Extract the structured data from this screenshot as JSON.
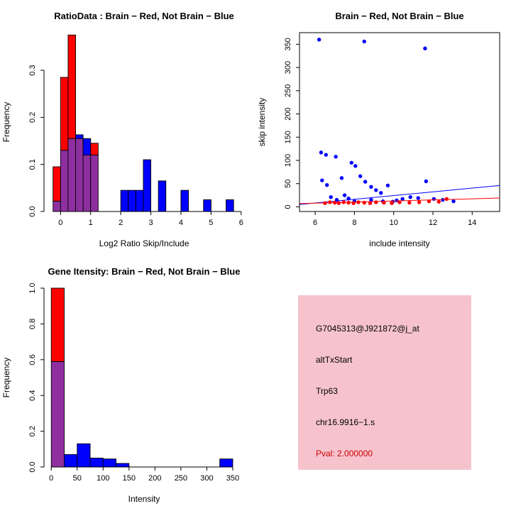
{
  "figure": {
    "background": "#FFFFFF",
    "red": "#FF0000",
    "blue": "#0000FF",
    "overlap_purple": "#8E2FA0"
  },
  "info_panel": {
    "bg": "#F6C3CD",
    "pval_color": "#CC0000",
    "lines": [
      {
        "text": "G7045313@J921872@j_at"
      },
      {
        "text": "altTxStart"
      },
      {
        "text": "Trp63"
      },
      {
        "text": "chr16.9916−1.s"
      },
      {
        "text": "Pval: 2.000000"
      }
    ]
  },
  "chart_data": [
    {
      "name": "ratio-histogram",
      "type": "bar",
      "subtype": "overlaid-histogram",
      "title": "RatioData : Brain − Red, Not Brain − Blue",
      "xlabel": "Log2 Ratio Skip/Include",
      "ylabel": "Frequency",
      "xlim": [
        -0.55,
        6.1
      ],
      "ylim": [
        0,
        0.38
      ],
      "xticks": [
        0,
        1,
        2,
        3,
        4,
        5,
        6
      ],
      "xtick_labels": [
        "0",
        "1",
        "2",
        "3",
        "4",
        "5",
        "6"
      ],
      "yticks": [
        0,
        0.1,
        0.2,
        0.3
      ],
      "ytick_labels": [
        "0.0",
        "0.1",
        "0.2",
        "0.3"
      ],
      "grid": false,
      "bin_width": 0.25,
      "overlap_color": "#8E2FA0",
      "series": [
        {
          "name": "Brain",
          "color": "#FF0000",
          "bins": [
            [
              -0.25,
              0.095
            ],
            [
              0,
              0.285
            ],
            [
              0.25,
              0.375
            ],
            [
              0.5,
              0.155
            ],
            [
              0.75,
              0.12
            ],
            [
              1,
              0.145
            ]
          ]
        },
        {
          "name": "Not Brain",
          "color": "#0000FF",
          "bins": [
            [
              -0.25,
              0.022
            ],
            [
              0,
              0.13
            ],
            [
              0.25,
              0.155
            ],
            [
              0.5,
              0.163
            ],
            [
              0.75,
              0.155
            ],
            [
              1,
              0.12
            ],
            [
              2,
              0.045
            ],
            [
              2.25,
              0.045
            ],
            [
              2.5,
              0.045
            ],
            [
              2.75,
              0.11
            ],
            [
              3.25,
              0.065
            ],
            [
              4,
              0.045
            ],
            [
              4.75,
              0.025
            ],
            [
              5.5,
              0.025
            ]
          ]
        }
      ]
    },
    {
      "name": "intensity-scatter",
      "type": "scatter",
      "title": "Brain − Red, Not Brain − Blue",
      "xlabel": "include intensity",
      "ylabel": "skip intensity",
      "xlim": [
        5.2,
        15.4
      ],
      "ylim": [
        -10,
        375
      ],
      "xticks": [
        6,
        8,
        10,
        12,
        14
      ],
      "xtick_labels": [
        "6",
        "8",
        "10",
        "12",
        "14"
      ],
      "yticks": [
        0,
        50,
        100,
        150,
        200,
        250,
        300,
        350
      ],
      "ytick_labels": [
        "0",
        "50",
        "100",
        "150",
        "200",
        "250",
        "300",
        "350"
      ],
      "grid": false,
      "box": true,
      "series": [
        {
          "name": "Not Brain",
          "color": "#0000FF",
          "points": [
            [
              6.2,
              360
            ],
            [
              8.5,
              356
            ],
            [
              11.6,
              341
            ],
            [
              6.3,
              117
            ],
            [
              6.55,
              112
            ],
            [
              7.05,
              108
            ],
            [
              7.85,
              95
            ],
            [
              8.05,
              88
            ],
            [
              6.35,
              57
            ],
            [
              6.6,
              47
            ],
            [
              7.35,
              62
            ],
            [
              8.3,
              66
            ],
            [
              8.55,
              54
            ],
            [
              8.85,
              43
            ],
            [
              9.1,
              36
            ],
            [
              9.35,
              30
            ],
            [
              9.7,
              46
            ],
            [
              11.65,
              55
            ],
            [
              6.8,
              21
            ],
            [
              7.1,
              15
            ],
            [
              7.5,
              25
            ],
            [
              7.7,
              18
            ],
            [
              8.0,
              12
            ],
            [
              8.85,
              15
            ],
            [
              9.45,
              12
            ],
            [
              9.95,
              11
            ],
            [
              10.15,
              14
            ],
            [
              10.45,
              17
            ],
            [
              10.85,
              21
            ],
            [
              11.25,
              19
            ],
            [
              12.05,
              17
            ],
            [
              12.5,
              15
            ],
            [
              13.05,
              12
            ]
          ],
          "line": {
            "x1": 5.2,
            "y1": 5,
            "x2": 15.4,
            "y2": 46
          }
        },
        {
          "name": "Brain",
          "color": "#FF0000",
          "points": [
            [
              6.5,
              8
            ],
            [
              6.75,
              10
            ],
            [
              7.0,
              9
            ],
            [
              7.2,
              8
            ],
            [
              7.45,
              10
            ],
            [
              7.7,
              9
            ],
            [
              7.95,
              8
            ],
            [
              8.2,
              10
            ],
            [
              8.5,
              9
            ],
            [
              8.8,
              8
            ],
            [
              9.1,
              10
            ],
            [
              9.5,
              9
            ],
            [
              9.9,
              8
            ],
            [
              10.3,
              10
            ],
            [
              10.8,
              9
            ],
            [
              11.3,
              10
            ],
            [
              11.8,
              12
            ],
            [
              12.3,
              11
            ],
            [
              12.7,
              17
            ]
          ],
          "line": {
            "x1": 5.2,
            "y1": 7,
            "x2": 15.4,
            "y2": 19
          }
        }
      ]
    },
    {
      "name": "gene-intensity-histogram",
      "type": "bar",
      "subtype": "overlaid-histogram",
      "title": "Gene Itensity: Brain − Red, Not Brain − Blue",
      "xlabel": "Intensity",
      "ylabel": "Frequency",
      "xlim": [
        -14,
        372
      ],
      "ylim": [
        0,
        1.0
      ],
      "xticks": [
        0,
        50,
        100,
        150,
        200,
        250,
        300,
        350
      ],
      "xtick_labels": [
        "0",
        "50",
        "100",
        "150",
        "200",
        "250",
        "300",
        "350"
      ],
      "yticks": [
        0,
        0.2,
        0.4,
        0.6,
        0.8,
        1.0
      ],
      "ytick_labels": [
        "0.0",
        "0.2",
        "0.4",
        "0.6",
        "0.8",
        "1.0"
      ],
      "grid": false,
      "bin_width": 25,
      "overlap_color": "#8E2FA0",
      "series": [
        {
          "name": "Brain",
          "color": "#FF0000",
          "bins": [
            [
              0,
              1.0
            ]
          ]
        },
        {
          "name": "Not Brain",
          "color": "#0000FF",
          "bins": [
            [
              0,
              0.59
            ],
            [
              25,
              0.07
            ],
            [
              50,
              0.13
            ],
            [
              75,
              0.05
            ],
            [
              100,
              0.045
            ],
            [
              125,
              0.02
            ],
            [
              325,
              0.045
            ]
          ]
        }
      ]
    }
  ]
}
